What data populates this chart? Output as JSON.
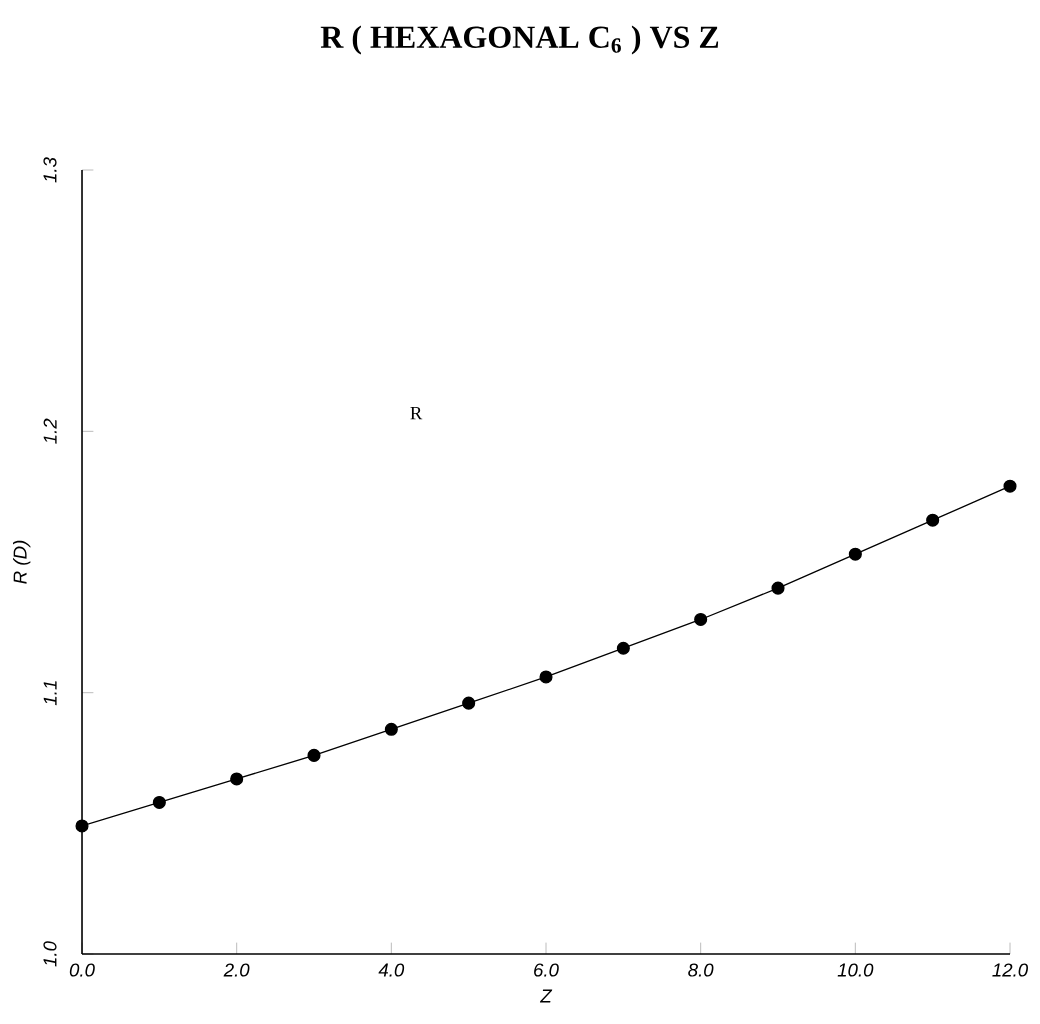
{
  "chart_data": {
    "type": "line",
    "title": "R ( HEXAGONAL  C$_{6}$ )  VS  Z",
    "xlabel": "Z",
    "ylabel": "R (D)",
    "x": [
      0,
      1,
      2,
      3,
      4,
      5,
      6,
      7,
      8,
      9,
      10,
      11,
      12
    ],
    "series": [
      {
        "color": "#000000",
        "values": [
          1.049,
          1.058,
          1.067,
          1.076,
          1.086,
          1.096,
          1.106,
          1.117,
          1.128,
          1.14,
          1.153,
          1.166,
          1.179
        ]
      }
    ],
    "xlim": [
      0,
      12
    ],
    "ylim": [
      1.0,
      1.3
    ],
    "xticks": [
      {
        "value": 0,
        "label": "0.0"
      },
      {
        "value": 2,
        "label": "2.0"
      },
      {
        "value": 4,
        "label": "4.0"
      },
      {
        "value": 6,
        "label": "6.0"
      },
      {
        "value": 8,
        "label": "8.0"
      },
      {
        "value": 10,
        "label": "10.0"
      },
      {
        "value": 12,
        "label": "12.0"
      }
    ],
    "yticks": [
      {
        "value": 1.0,
        "label": "1.0"
      },
      {
        "value": 1.1,
        "label": "1.1"
      },
      {
        "value": 1.2,
        "label": "1.2"
      },
      {
        "value": 1.3,
        "label": "1.3"
      }
    ],
    "annotations": [
      "R"
    ],
    "marker": "circle",
    "line_style": "solid"
  }
}
